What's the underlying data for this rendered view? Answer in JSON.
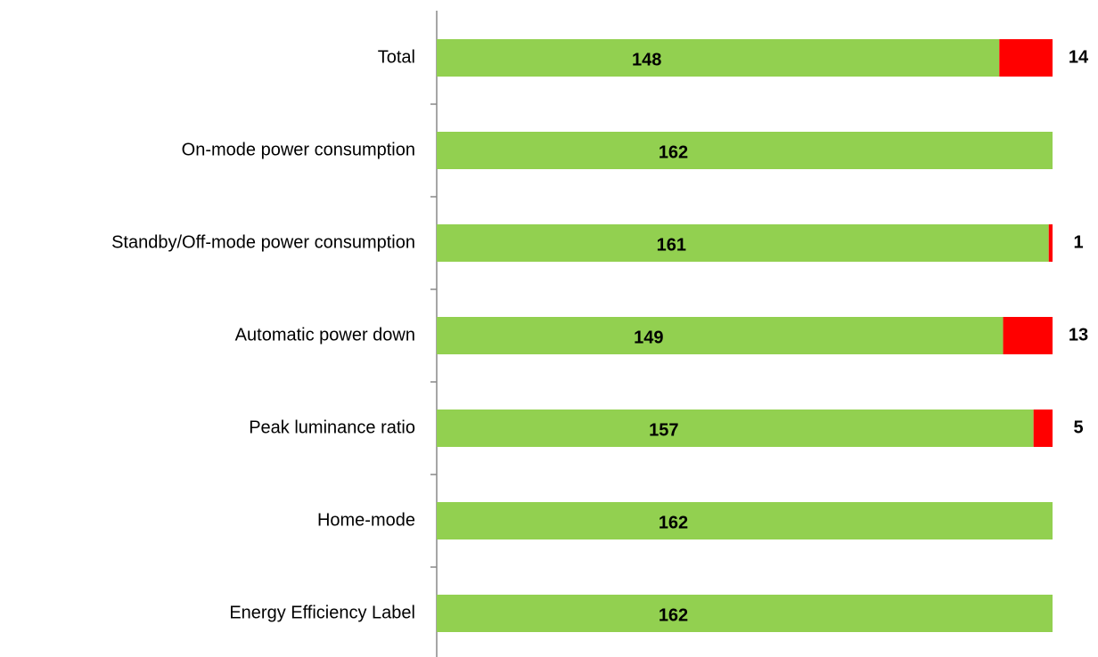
{
  "chart_data": {
    "type": "stacked_barh",
    "categories": [
      "Total",
      "On-mode power consumption",
      "Standby/Off-mode power consumption",
      "Automatic power down",
      "Peak luminance ratio",
      "Home-mode",
      "Energy Efficiency Label"
    ],
    "series": [
      {
        "color": "#92d050",
        "values": [
          148,
          162,
          161,
          149,
          157,
          162,
          162
        ]
      },
      {
        "color": "#ff0000",
        "values": [
          14,
          0,
          1,
          13,
          5,
          0,
          0
        ],
        "value_labels": [
          "14",
          null,
          "1",
          "13",
          "5",
          null,
          null
        ]
      }
    ],
    "xlim": [
      0,
      162
    ]
  }
}
